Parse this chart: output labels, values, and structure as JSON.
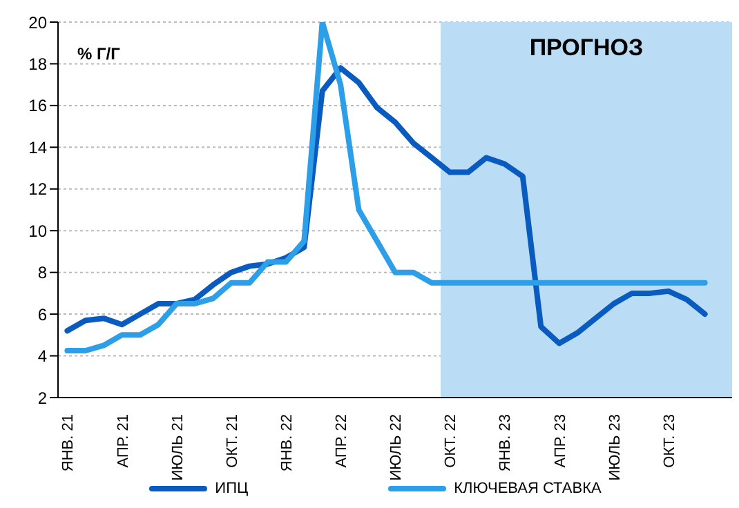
{
  "chart_data": {
    "type": "line",
    "ylabel": "% Г/Г",
    "x": [
      "2021-01",
      "2021-02",
      "2021-03",
      "2021-04",
      "2021-05",
      "2021-06",
      "2021-07",
      "2021-08",
      "2021-09",
      "2021-10",
      "2021-11",
      "2021-12",
      "2022-01",
      "2022-02",
      "2022-03",
      "2022-04",
      "2022-05",
      "2022-06",
      "2022-07",
      "2022-08",
      "2022-09",
      "2022-10",
      "2022-11",
      "2022-12",
      "2023-01",
      "2023-02",
      "2023-03",
      "2023-04",
      "2023-05",
      "2023-06",
      "2023-07",
      "2023-08",
      "2023-09",
      "2023-10",
      "2023-11",
      "2023-12"
    ],
    "xlim": [
      "2020-12-16",
      "2024-01-16"
    ],
    "xticks": [
      {
        "value": "2021-01",
        "label": "ЯНВ. 21"
      },
      {
        "value": "2021-04",
        "label": "АПР. 21"
      },
      {
        "value": "2021-07",
        "label": "ИЮЛЬ 21"
      },
      {
        "value": "2021-10",
        "label": "ОКТ. 21"
      },
      {
        "value": "2022-01",
        "label": "ЯНВ. 22"
      },
      {
        "value": "2022-04",
        "label": "АПР. 22"
      },
      {
        "value": "2022-07",
        "label": "ИЮЛЬ 22"
      },
      {
        "value": "2022-10",
        "label": "ОКТ. 22"
      },
      {
        "value": "2023-01",
        "label": "ЯНВ. 23"
      },
      {
        "value": "2023-04",
        "label": "АПР. 23"
      },
      {
        "value": "2023-07",
        "label": "ИЮЛЬ 23"
      },
      {
        "value": "2023-10",
        "label": "ОКТ. 23"
      }
    ],
    "series": [
      {
        "name": "ИПЦ",
        "color": "#0a5bbf",
        "values": [
          5.2,
          5.7,
          5.8,
          5.5,
          6.0,
          6.5,
          6.5,
          6.7,
          7.4,
          8.0,
          8.3,
          8.4,
          8.7,
          9.2,
          16.7,
          17.8,
          17.1,
          15.9,
          15.2,
          14.2,
          13.5,
          12.8,
          12.8,
          13.5,
          13.2,
          12.6,
          5.4,
          4.6,
          5.1,
          5.8,
          6.5,
          7.0,
          7.0,
          7.1,
          6.7,
          6.0
        ]
      },
      {
        "name": "КЛЮЧЕВАЯ СТАВКА",
        "color": "#2c9fe8",
        "values": [
          4.25,
          4.25,
          4.5,
          5.0,
          5.0,
          5.5,
          6.5,
          6.5,
          6.75,
          7.5,
          7.5,
          8.5,
          8.5,
          9.5,
          20,
          17,
          11,
          9.5,
          8,
          8,
          7.5,
          7.5,
          7.5,
          7.5,
          7.5,
          7.5,
          7.5,
          7.5,
          7.5,
          7.5,
          7.5,
          7.5,
          7.5,
          7.5,
          7.5,
          7.5
        ]
      }
    ],
    "ylim": [
      2,
      20
    ],
    "yticks": [
      2,
      4,
      6,
      8,
      10,
      12,
      14,
      16,
      18,
      20
    ],
    "grid": "y",
    "legend": "bottom",
    "line_style": "solid",
    "marker": "none",
    "bands": [
      {
        "axis": "x",
        "from": "2022-09-16",
        "to": "2024-01-16",
        "label": "ПРОГНОЗ",
        "color": "#bbdcf5"
      }
    ]
  }
}
